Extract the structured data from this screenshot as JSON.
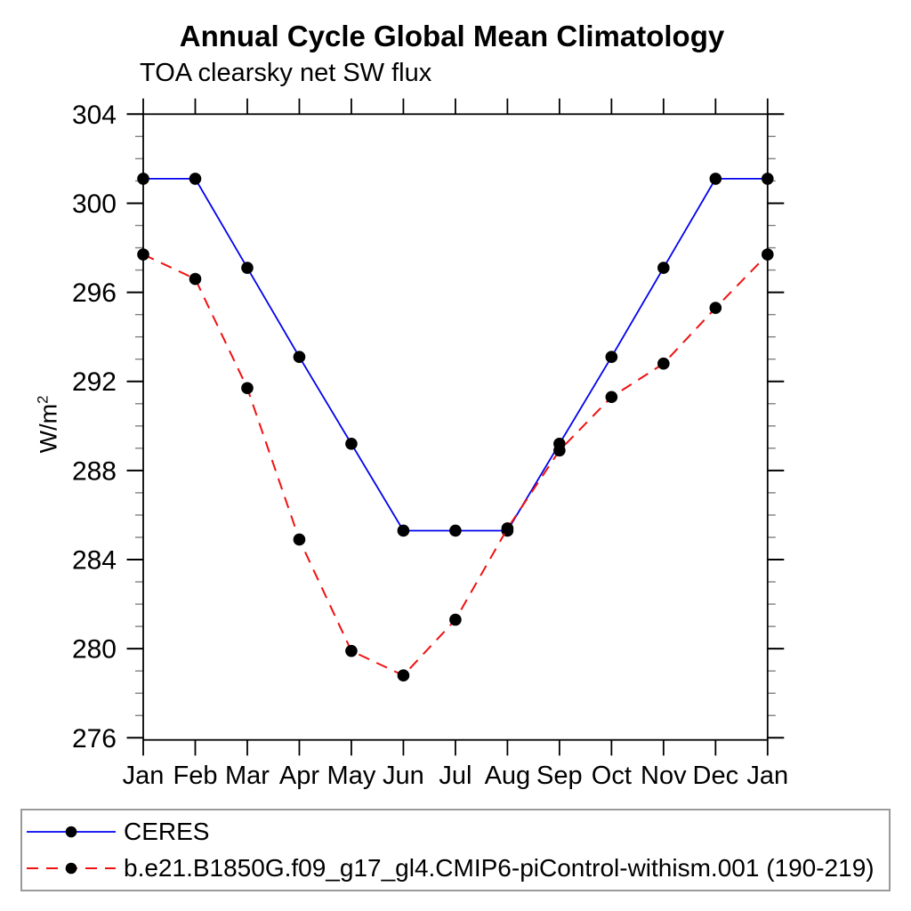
{
  "chart_data": {
    "type": "line",
    "title": "Annual Cycle Global Mean Climatology",
    "subtitle": "TOA clearsky net SW flux",
    "ylabel": "W/m²",
    "ylabel_base": "W/m",
    "ylabel_sup": "2",
    "categories": [
      "Jan",
      "Feb",
      "Mar",
      "Apr",
      "May",
      "Jun",
      "Jul",
      "Aug",
      "Sep",
      "Oct",
      "Nov",
      "Dec",
      "Jan"
    ],
    "ylim": [
      276,
      304
    ],
    "ytick_labels": [
      304,
      300,
      296,
      292,
      288,
      284,
      280,
      276
    ],
    "ytick_major_step": 4,
    "ytick_minor_step": 1,
    "grid": false,
    "legend_position": "bottom",
    "marker": "filled-circle",
    "marker_color": "#000000",
    "series": [
      {
        "name": "CERES",
        "color": "#0000ee",
        "dash": "solid",
        "values": [
          301.1,
          301.1,
          297.1,
          293.1,
          289.2,
          285.3,
          285.3,
          285.3,
          289.2,
          293.1,
          297.1,
          301.1,
          301.1
        ]
      },
      {
        "name": "b.e21.B1850G.f09_g17_gl4.CMIP6-piControl-withism.001 (190-219)",
        "color": "#f01010",
        "dash": "dashed",
        "values": [
          297.7,
          296.6,
          291.7,
          284.9,
          279.9,
          278.8,
          281.3,
          285.4,
          288.9,
          291.3,
          292.8,
          295.3,
          297.7
        ]
      }
    ]
  }
}
